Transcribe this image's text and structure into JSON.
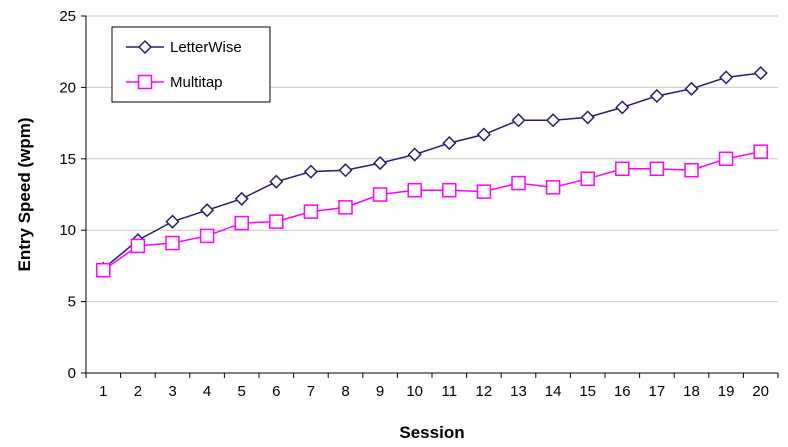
{
  "chart_data": {
    "type": "line",
    "title": "",
    "xlabel": "Session",
    "ylabel": "Entry Speed (wpm)",
    "x": [
      1,
      2,
      3,
      4,
      5,
      6,
      7,
      8,
      9,
      10,
      11,
      12,
      13,
      14,
      15,
      16,
      17,
      18,
      19,
      20
    ],
    "xlim": [
      0.5,
      20.5
    ],
    "ylim": [
      0,
      25
    ],
    "yticks": [
      0,
      5,
      10,
      15,
      20,
      25
    ],
    "grid": "horizontal",
    "legend": "top-left",
    "series": [
      {
        "name": "LetterWise",
        "color": "#1f1f7a",
        "marker": "diamond",
        "values": [
          7.3,
          9.3,
          10.6,
          11.4,
          12.2,
          13.4,
          14.1,
          14.2,
          14.7,
          15.3,
          16.1,
          16.7,
          17.7,
          17.7,
          17.9,
          18.6,
          19.4,
          19.9,
          20.7,
          21.0
        ]
      },
      {
        "name": "Multitap",
        "color": "#ff00ff",
        "marker": "square",
        "values": [
          7.2,
          8.9,
          9.1,
          9.6,
          10.5,
          10.6,
          11.3,
          11.6,
          12.5,
          12.8,
          12.8,
          12.7,
          13.3,
          13.0,
          13.6,
          14.3,
          14.3,
          14.2,
          15.0,
          15.5
        ]
      }
    ]
  }
}
